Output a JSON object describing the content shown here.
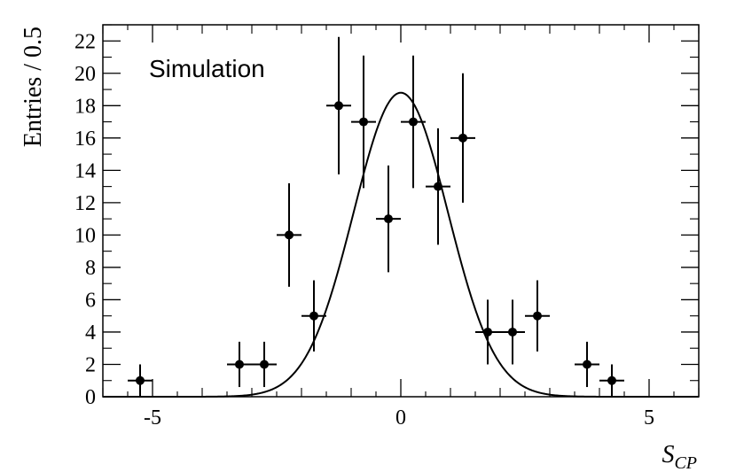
{
  "chart_data": {
    "type": "scatter",
    "annotation": "Simulation",
    "ylabel": "Entries / 0.5",
    "xlabel": {
      "main": "S",
      "sub": "CP"
    },
    "xlim": [
      -6,
      6
    ],
    "ylim": [
      0,
      23
    ],
    "x_ticks": [
      -5,
      0,
      5
    ],
    "x_tick_labels": [
      "-5",
      "0",
      "5"
    ],
    "y_ticks": [
      0,
      2,
      4,
      6,
      8,
      10,
      12,
      14,
      16,
      18,
      20,
      22
    ],
    "y_tick_labels": [
      "0",
      "2",
      "4",
      "6",
      "8",
      "10",
      "12",
      "14",
      "16",
      "18",
      "20",
      "22"
    ],
    "bin_width": 0.5,
    "points": [
      {
        "x": -5.25,
        "y": 1,
        "yerr": 1.0
      },
      {
        "x": -3.25,
        "y": 2,
        "yerr": 1.4
      },
      {
        "x": -2.75,
        "y": 2,
        "yerr": 1.4
      },
      {
        "x": -2.25,
        "y": 10,
        "yerr": 3.2
      },
      {
        "x": -1.75,
        "y": 5,
        "yerr": 2.2
      },
      {
        "x": -1.25,
        "y": 18,
        "yerr": 4.25
      },
      {
        "x": -0.75,
        "y": 17,
        "yerr": 4.1
      },
      {
        "x": -0.25,
        "y": 11,
        "yerr": 3.3
      },
      {
        "x": 0.25,
        "y": 17,
        "yerr": 4.1
      },
      {
        "x": 0.75,
        "y": 13,
        "yerr": 3.6
      },
      {
        "x": 1.25,
        "y": 16,
        "yerr": 4.0
      },
      {
        "x": 1.75,
        "y": 4,
        "yerr": 2.0
      },
      {
        "x": 2.25,
        "y": 4,
        "yerr": 2.0
      },
      {
        "x": 2.75,
        "y": 5,
        "yerr": 2.2
      },
      {
        "x": 3.75,
        "y": 2,
        "yerr": 1.4
      },
      {
        "x": 4.25,
        "y": 1,
        "yerr": 1.0
      }
    ],
    "fit_curve": {
      "type": "gaussian",
      "mean": 0.0,
      "sigma": 0.95,
      "amplitude": 18.8
    },
    "grid": false,
    "legend": "none"
  }
}
